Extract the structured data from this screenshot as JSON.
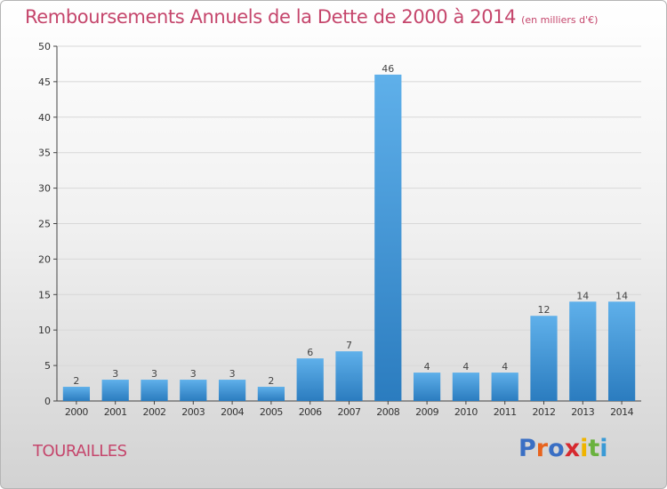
{
  "header": {
    "title": "Remboursements Annuels de la Dette de 2000 à 2014",
    "subtitle": "(en milliers d'€)"
  },
  "footer": {
    "commune": "TOURAILLES",
    "logo_letters": [
      "P",
      "r",
      "o",
      "x",
      "i",
      "t",
      "i"
    ],
    "logo_colors": [
      "#3a6fc4",
      "#e8641e",
      "#3a6fc4",
      "#d6292f",
      "#f0b400",
      "#6ab23e",
      "#3a9ad6"
    ]
  },
  "colors": {
    "bar_light": "#5fb0ea",
    "bar_dark": "#2b7cbf",
    "title": "#c5466c",
    "grid": "#d8d8d8"
  },
  "chart_data": {
    "type": "bar",
    "title": "Remboursements Annuels de la Dette de 2000 à 2014",
    "subtitle": "(en milliers d'€)",
    "xlabel": "",
    "ylabel": "",
    "categories": [
      "2000",
      "2001",
      "2002",
      "2003",
      "2004",
      "2005",
      "2006",
      "2007",
      "2008",
      "2009",
      "2010",
      "2011",
      "2012",
      "2013",
      "2014"
    ],
    "values": [
      2,
      3,
      3,
      3,
      3,
      2,
      6,
      7,
      46,
      4,
      4,
      4,
      12,
      14,
      14
    ],
    "ylim": [
      0,
      50
    ],
    "yticks": [
      0,
      5,
      10,
      15,
      20,
      25,
      30,
      35,
      40,
      45,
      50
    ],
    "grid": true,
    "legend": "none"
  }
}
